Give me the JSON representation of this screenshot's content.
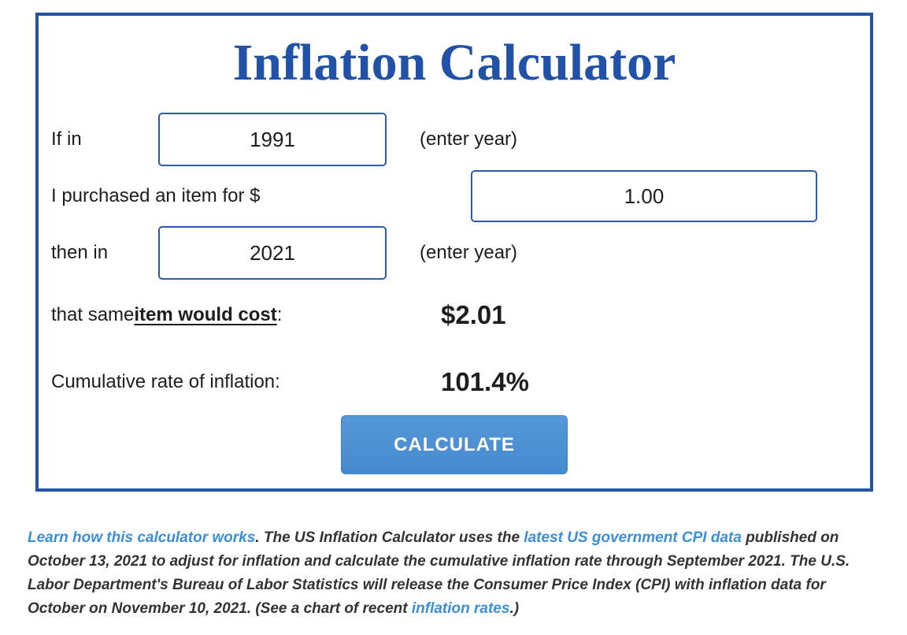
{
  "calculator": {
    "title": "Inflation Calculator",
    "start_year": {
      "label": "If in",
      "value": "1991",
      "hint": "(enter year)"
    },
    "amount": {
      "label": "I purchased an item for $",
      "value": "1.00"
    },
    "end_year": {
      "label": "then in",
      "value": "2021",
      "hint": "(enter year)"
    },
    "cost_result": {
      "label_prefix": "that same ",
      "label_emphasis": "item would cost",
      "label_suffix": ":",
      "value": "$2.01"
    },
    "rate_result": {
      "label": "Cumulative rate of inflation:",
      "value": "101.4%"
    },
    "calculate_label": "CALCULATE"
  },
  "footer": {
    "segments": [
      {
        "text": "Learn how this calculator works",
        "link": true
      },
      {
        "text": ". The US Inflation Calculator uses the ",
        "link": false
      },
      {
        "text": "latest US government CPI data",
        "link": true
      },
      {
        "text": " published on October 13, 2021 to adjust for inflation and calculate the cumulative inflation rate through September 2021. The U.S. Labor Department's Bureau of Labor Statistics will release the Consumer Price Index (CPI) with inflation data for October on November 10, 2021. (See a chart of recent ",
        "link": false
      },
      {
        "text": "inflation rates",
        "link": true
      },
      {
        "text": ".)",
        "link": false
      }
    ]
  },
  "colors": {
    "box_border": "#2355a6",
    "title_blue": "#2251a8",
    "input_border": "#2b5cad",
    "button_blue": "#4a8ed3",
    "link_blue": "#3a8fd6",
    "text_dark": "#1d1d1f"
  }
}
